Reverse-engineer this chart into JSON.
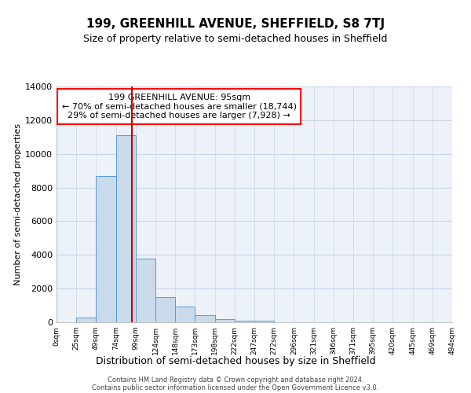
{
  "title": "199, GREENHILL AVENUE, SHEFFIELD, S8 7TJ",
  "subtitle": "Size of property relative to semi-detached houses in Sheffield",
  "xlabel": "Distribution of semi-detached houses by size in Sheffield",
  "ylabel": "Number of semi-detached properties",
  "annotation_title": "199 GREENHILL AVENUE: 95sqm",
  "annotation_line1": "← 70% of semi-detached houses are smaller (18,744)",
  "annotation_line2": "29% of semi-detached houses are larger (7,928) →",
  "footer_line1": "Contains HM Land Registry data © Crown copyright and database right 2024.",
  "footer_line2": "Contains public sector information licensed under the Open Government Licence v3.0.",
  "bin_edges": [
    0,
    25,
    50,
    75,
    100,
    125,
    150,
    175,
    200,
    225,
    250,
    275,
    300,
    325,
    350,
    375,
    400,
    425,
    450,
    475,
    500
  ],
  "bin_counts": [
    0,
    300,
    8700,
    11100,
    3800,
    1500,
    950,
    400,
    175,
    100,
    100,
    0,
    0,
    0,
    0,
    0,
    0,
    0,
    0,
    0
  ],
  "bar_color": "#c9daea",
  "bar_edge_color": "#5b9bd5",
  "vline_color": "#cc0000",
  "vline_x": 95,
  "grid_color": "#c8d4e8",
  "background_color": "#edf2f9",
  "ylim": [
    0,
    14000
  ],
  "yticks": [
    0,
    2000,
    4000,
    6000,
    8000,
    10000,
    12000,
    14000
  ],
  "xtick_labels": [
    "0sqm",
    "25sqm",
    "49sqm",
    "74sqm",
    "99sqm",
    "124sqm",
    "148sqm",
    "173sqm",
    "198sqm",
    "222sqm",
    "247sqm",
    "272sqm",
    "296sqm",
    "321sqm",
    "346sqm",
    "371sqm",
    "395sqm",
    "420sqm",
    "445sqm",
    "469sqm",
    "494sqm"
  ],
  "title_fontsize": 11,
  "subtitle_fontsize": 9,
  "xlabel_fontsize": 9,
  "ylabel_fontsize": 8,
  "xtick_fontsize": 6.5,
  "ytick_fontsize": 8,
  "annotation_fontsize": 8,
  "footer_fontsize": 6
}
